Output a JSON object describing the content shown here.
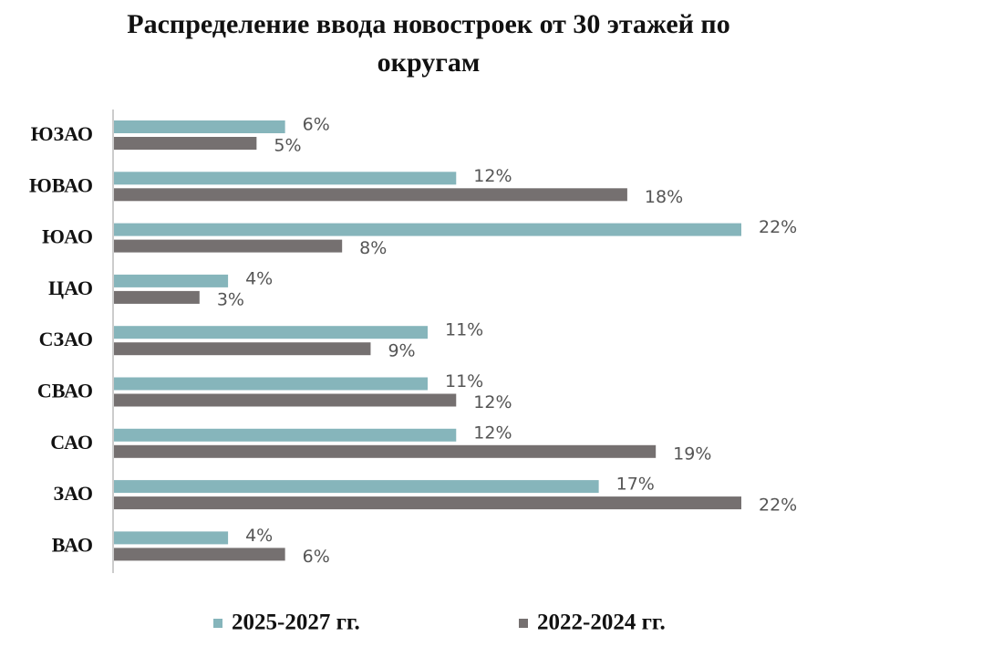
{
  "chart_data": {
    "type": "hbar",
    "title": "Распределение ввода новостроек от 30 этажей по округам",
    "categories": [
      "ЮЗАО",
      "ЮВАО",
      "ЮАО",
      "ЦАО",
      "СЗАО",
      "СВАО",
      "САО",
      "ЗАО",
      "ВАО"
    ],
    "series": [
      {
        "name": "2025-2027 гг.",
        "color": "#86b5bb",
        "values": [
          6,
          12,
          22,
          4,
          11,
          11,
          12,
          17,
          4
        ],
        "value_labels": [
          "6%",
          "12%",
          "22%",
          "4%",
          "11%",
          "11%",
          "12%",
          "17%",
          "4%"
        ]
      },
      {
        "name": "2022-2024 гг.",
        "color": "#757070",
        "values": [
          5,
          18,
          8,
          3,
          9,
          12,
          19,
          22,
          6
        ],
        "value_labels": [
          "5%",
          "18%",
          "8%",
          "3%",
          "9%",
          "12%",
          "19%",
          "22%",
          "6%"
        ]
      }
    ],
    "legend": "bottom"
  }
}
